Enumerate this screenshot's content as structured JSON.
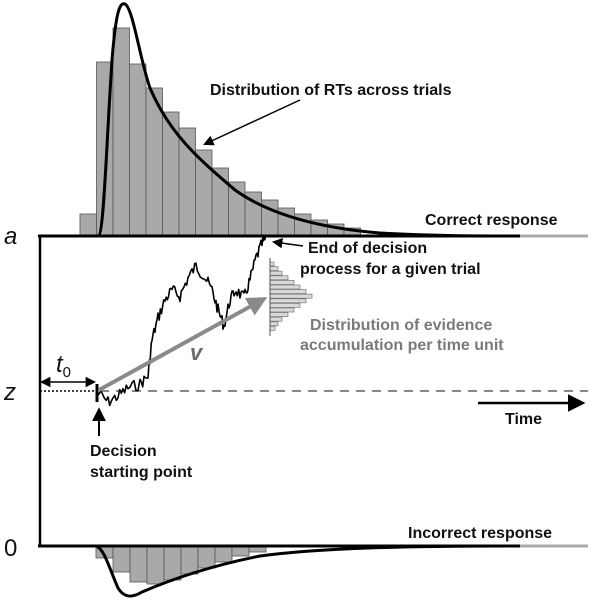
{
  "labels": {
    "rt_distribution": "Distribution of RTs across trials",
    "correct_response": "Correct response",
    "incorrect_response": "Incorrect response",
    "end_line1": "End of decision",
    "end_line2": "process for a given trial",
    "evidence_line1": "Distribution of evidence",
    "evidence_line2": "accumulation per time unit",
    "start_line1": "Decision",
    "start_line2": "starting point",
    "time": "Time",
    "boundary_a": "a",
    "start_z": "z",
    "boundary_0": "0",
    "t0": "t",
    "t0_sub": "0",
    "drift_v": "v"
  },
  "colors": {
    "bars": "#a9a9a9",
    "curve": "#000000",
    "drift_arrow": "#8a8a8a",
    "dashed_line": "#888888",
    "evidence_hist": "#d9d9d9"
  }
}
